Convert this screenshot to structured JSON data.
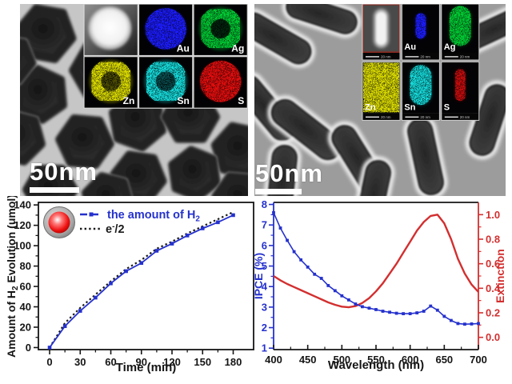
{
  "figure": {
    "background": "#ffffff",
    "tem_left": {
      "scale_bar_label": "50nm",
      "eds": {
        "labels": [
          "Au",
          "Ag",
          "Zn",
          "Sn",
          "S"
        ]
      }
    },
    "tem_right": {
      "scale_bar_label": "50nm",
      "inset_scale_label": "20 nm",
      "eds": {
        "labels": [
          "Au",
          "Ag",
          "Zn",
          "Sn",
          "S"
        ]
      }
    },
    "colors": {
      "series_blue": "#2531cd",
      "series_black": "#1a1a1a",
      "series_red": "#d32f2f",
      "eds_au": "#1a1aff",
      "eds_ag": "#00c832",
      "eds_zn": "#d9d900",
      "eds_sn": "#15d9d9",
      "eds_s": "#e01010"
    }
  },
  "chart_data": [
    {
      "type": "line",
      "title": "",
      "xlabel": "Time (min)",
      "ylabel": "Amount of H2 Evolution (umol)",
      "ylabel_parts": {
        "prefix": "Amount of H",
        "sub": "2",
        "suffix": " Evolution (umol)"
      },
      "xlim": [
        -11,
        200
      ],
      "ylim": [
        -2,
        142.5
      ],
      "xticks": [
        0,
        30,
        60,
        90,
        120,
        150,
        180
      ],
      "yticks": [
        0,
        20,
        40,
        60,
        80,
        100,
        120,
        140
      ],
      "grid": false,
      "legend_position": "upper-left",
      "x": [
        0,
        15,
        30,
        45,
        60,
        75,
        90,
        105,
        120,
        135,
        150,
        165,
        180
      ],
      "series": [
        {
          "name": "the amount of H2",
          "color": "#2531cd",
          "style": "solid",
          "marker": "square",
          "values": [
            0,
            21,
            36,
            49,
            63,
            75,
            83,
            95,
            102,
            110,
            117,
            123,
            130
          ]
        },
        {
          "name": "e-/2",
          "color": "#1a1a1a",
          "style": "dotted",
          "marker": "none",
          "values": [
            0,
            24,
            39,
            52,
            65,
            77,
            86,
            97,
            104,
            112,
            119,
            126,
            133
          ]
        }
      ],
      "legend": [
        {
          "prefix": "the amount of H",
          "sub": "2",
          "suffix": ""
        },
        {
          "prefix": "e",
          "sup": "-",
          "suffix": "/2"
        }
      ]
    },
    {
      "type": "line",
      "title": "",
      "xlabel": "Wavelength (nm)",
      "ylabel_left": "IPCE (%)",
      "ylabel_right": "Extinction",
      "xlim": [
        400,
        700
      ],
      "ylim_left": [
        0.93,
        8.1
      ],
      "ylim_right": [
        -0.1,
        1.1
      ],
      "xticks": [
        400,
        450,
        500,
        550,
        600,
        650,
        700
      ],
      "yticks_left": [
        1,
        2,
        3,
        4,
        5,
        6,
        7,
        8
      ],
      "yticks_right": [
        0.0,
        0.2,
        0.4,
        0.6,
        0.8,
        1.0
      ],
      "grid": false,
      "x": [
        400,
        410,
        420,
        430,
        440,
        450,
        460,
        470,
        480,
        490,
        500,
        510,
        520,
        530,
        540,
        550,
        560,
        570,
        580,
        590,
        600,
        610,
        620,
        630,
        640,
        650,
        660,
        670,
        680,
        690,
        700
      ],
      "series": [
        {
          "name": "IPCE",
          "axis": "left",
          "color": "#2531cd",
          "style": "solid",
          "marker": "square",
          "values": [
            7.6,
            6.85,
            6.25,
            5.7,
            5.3,
            4.95,
            4.6,
            4.4,
            4.05,
            3.8,
            3.55,
            3.35,
            3.15,
            3.02,
            2.95,
            2.88,
            2.8,
            2.75,
            2.7,
            2.68,
            2.68,
            2.72,
            2.8,
            3.05,
            2.85,
            2.55,
            2.35,
            2.2,
            2.17,
            2.18,
            2.2
          ]
        },
        {
          "name": "Extinction",
          "axis": "right",
          "color": "#d32f2f",
          "style": "solid",
          "marker": "none",
          "values": [
            0.5,
            0.465,
            0.435,
            0.41,
            0.385,
            0.36,
            0.335,
            0.31,
            0.285,
            0.265,
            0.25,
            0.245,
            0.255,
            0.28,
            0.32,
            0.375,
            0.44,
            0.52,
            0.6,
            0.69,
            0.78,
            0.87,
            0.94,
            0.99,
            1.0,
            0.93,
            0.8,
            0.64,
            0.52,
            0.43,
            0.37
          ]
        }
      ]
    }
  ]
}
